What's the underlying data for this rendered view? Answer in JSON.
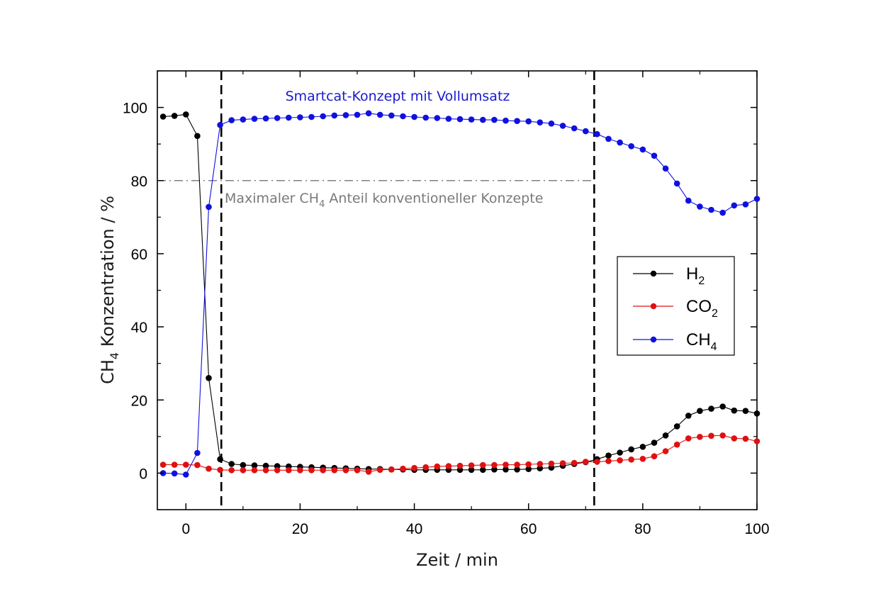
{
  "chart_data": {
    "type": "line",
    "title": "",
    "xlabel": "Zeit / min",
    "ylabel": {
      "pre": "CH",
      "sub": "4",
      "post": " Konzentration / %"
    },
    "xlim": [
      -5,
      100
    ],
    "ylim": [
      -10,
      110
    ],
    "xticks": [
      0,
      20,
      40,
      60,
      80,
      100
    ],
    "yticks": [
      0,
      20,
      40,
      60,
      80,
      100
    ],
    "x_tick_labels": [
      "0",
      "20",
      "40",
      "60",
      "80",
      "100"
    ],
    "y_tick_labels": [
      "0",
      "20",
      "40",
      "60",
      "80",
      "100"
    ],
    "grid": false,
    "legend_position": "right",
    "series": [
      {
        "name": {
          "pre": "H",
          "sub": "2"
        },
        "color": "#000000",
        "x": [
          -4,
          -2,
          0,
          2,
          4,
          6,
          8,
          10,
          12,
          14,
          16,
          18,
          20,
          22,
          24,
          26,
          28,
          30,
          32,
          34,
          36,
          38,
          40,
          42,
          44,
          46,
          48,
          50,
          52,
          54,
          56,
          58,
          60,
          62,
          64,
          66,
          68,
          70,
          72,
          74,
          76,
          78,
          80,
          82,
          84,
          86,
          88,
          90,
          92,
          94,
          96,
          98,
          100
        ],
        "y": [
          97.5,
          97.7,
          98.1,
          92.2,
          26,
          3.8,
          2.5,
          2.2,
          2.1,
          2.0,
          1.9,
          1.8,
          1.7,
          1.6,
          1.5,
          1.4,
          1.3,
          1.2,
          1.1,
          1.1,
          1.0,
          1.0,
          0.9,
          0.9,
          0.9,
          0.9,
          0.9,
          0.9,
          0.9,
          1.0,
          1.0,
          1.0,
          1.1,
          1.3,
          1.5,
          2.0,
          2.5,
          3.0,
          3.8,
          4.8,
          5.6,
          6.5,
          7.2,
          8.3,
          10.3,
          12.8,
          15.7,
          17.0,
          17.6,
          18.2,
          17.1,
          17.0,
          16.3
        ]
      },
      {
        "name": {
          "pre": "CO",
          "sub": "2"
        },
        "color": "#e01010",
        "x": [
          -4,
          -2,
          0,
          2,
          4,
          6,
          8,
          10,
          12,
          14,
          16,
          18,
          20,
          22,
          24,
          26,
          28,
          30,
          32,
          34,
          36,
          38,
          40,
          42,
          44,
          46,
          48,
          50,
          52,
          54,
          56,
          58,
          60,
          62,
          64,
          66,
          68,
          70,
          72,
          74,
          76,
          78,
          80,
          82,
          84,
          86,
          88,
          90,
          92,
          94,
          96,
          98,
          100
        ],
        "y": [
          2.3,
          2.3,
          2.3,
          2.2,
          1.2,
          0.9,
          0.8,
          0.8,
          0.8,
          0.8,
          0.8,
          0.8,
          0.8,
          0.8,
          0.8,
          0.8,
          0.8,
          0.8,
          0.4,
          0.9,
          1.0,
          1.2,
          1.4,
          1.6,
          1.8,
          1.9,
          2.0,
          2.1,
          2.2,
          2.2,
          2.3,
          2.3,
          2.4,
          2.5,
          2.6,
          2.7,
          2.8,
          3.1,
          3.1,
          3.3,
          3.5,
          3.7,
          3.9,
          4.6,
          6.0,
          7.8,
          9.5,
          9.9,
          10.2,
          10.3,
          9.5,
          9.4,
          8.7
        ]
      },
      {
        "name": {
          "pre": "CH",
          "sub": "4"
        },
        "color": "#1010e0",
        "x": [
          -4,
          -2,
          0,
          2,
          4,
          6,
          8,
          10,
          12,
          14,
          16,
          18,
          20,
          22,
          24,
          26,
          28,
          30,
          32,
          34,
          36,
          38,
          40,
          42,
          44,
          46,
          48,
          50,
          52,
          54,
          56,
          58,
          60,
          62,
          64,
          66,
          68,
          70,
          72,
          74,
          76,
          78,
          80,
          82,
          84,
          86,
          88,
          90,
          92,
          94,
          96,
          98,
          100
        ],
        "y": [
          0.0,
          -0.1,
          -0.4,
          5.5,
          72.8,
          95.2,
          96.5,
          96.7,
          96.9,
          97.0,
          97.1,
          97.2,
          97.3,
          97.4,
          97.6,
          97.8,
          97.9,
          98.0,
          98.4,
          98.0,
          97.8,
          97.6,
          97.4,
          97.2,
          97.1,
          96.9,
          96.8,
          96.7,
          96.6,
          96.6,
          96.4,
          96.3,
          96.2,
          95.9,
          95.6,
          95.0,
          94.3,
          93.5,
          92.7,
          91.4,
          90.4,
          89.4,
          88.5,
          86.8,
          83.3,
          79.2,
          74.5,
          72.9,
          72.0,
          71.2,
          73.2,
          73.5,
          75.0
        ]
      }
    ],
    "vertical_lines": [
      6.2,
      71.5
    ],
    "reference_line": {
      "y": 80,
      "x_start": -5,
      "x_end": 71.5,
      "color": "#808080"
    },
    "annotations": {
      "top": "Smartcat-Konzept mit Vollumsatz",
      "top_color": "#1a1ad0",
      "grey": {
        "pre": "Maximaler CH",
        "sub": "4",
        "post": " Anteil konventioneller Konzepte"
      },
      "grey_color": "#7a7a7a"
    }
  }
}
